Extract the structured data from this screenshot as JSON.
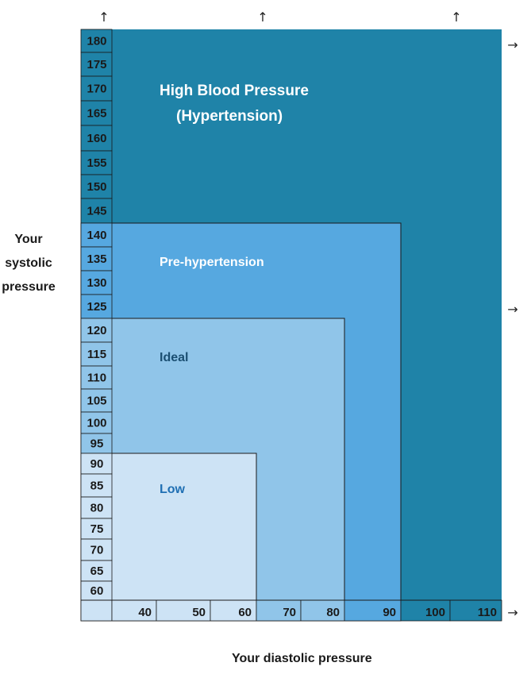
{
  "chart_data": {
    "type": "area",
    "title": "",
    "ylabel_lines": [
      "Your",
      "systolic",
      "pressure"
    ],
    "xlabel": "Your diastolic pressure",
    "y_ticks": [
      180,
      175,
      170,
      165,
      160,
      155,
      150,
      145,
      140,
      135,
      130,
      125,
      120,
      115,
      110,
      105,
      100,
      95,
      90,
      85,
      80,
      75,
      70,
      65,
      60
    ],
    "x_ticks": [
      40,
      50,
      60,
      70,
      80,
      90,
      100,
      110
    ],
    "zones": [
      {
        "name": "High Blood Pressure",
        "subname": "(Hypertension)",
        "systolic_max": 180,
        "diastolic_max": 110,
        "color": "#1f83a8",
        "label_color": "#ffffff"
      },
      {
        "name": "Pre-hypertension",
        "systolic_max": 140,
        "diastolic_max": 90,
        "color": "#56a8e0",
        "label_color": "#ffffff"
      },
      {
        "name": "Ideal",
        "systolic_max": 120,
        "diastolic_max": 80,
        "color": "#90c5e9",
        "label_color": "#1b4f72"
      },
      {
        "name": "Low",
        "systolic_max": 90,
        "diastolic_max": 60,
        "color": "#cde3f5",
        "label_color": "#1f6fb3"
      }
    ],
    "arrows": {
      "top": "↑",
      "right": "→"
    }
  }
}
